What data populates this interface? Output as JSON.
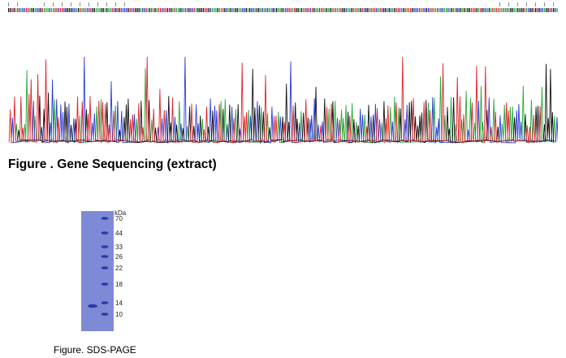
{
  "figure1": {
    "caption": "Figure . Gene Sequencing (extract)",
    "trace_colors": {
      "A": "#22a83a",
      "C": "#2a3bd8",
      "G": "#111111",
      "T": "#e0222a"
    }
  },
  "figure2": {
    "caption": "Figure. SDS-PAGE",
    "marker_unit": "kDa",
    "markers": [
      "70",
      "44",
      "33",
      "26",
      "22",
      "18",
      "14",
      "10"
    ],
    "gel_color": "#7f8ad6",
    "band_color": "#2b3aa6"
  }
}
